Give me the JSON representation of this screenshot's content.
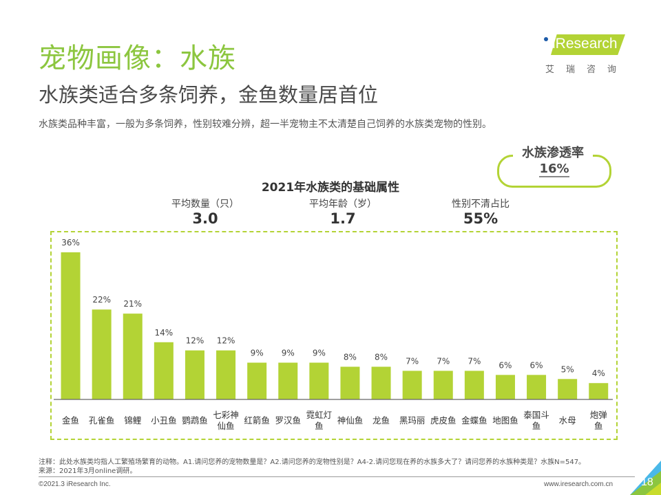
{
  "header": {
    "title": "宠物画像：水族",
    "subtitle": "水族类适合多条饲养，金鱼数量居首位",
    "description": "水族类品种丰富，一般为多条饲养，性别较难分辨，超一半宠物主不太清楚自己饲养的水族类宠物的性别。"
  },
  "logo": {
    "brand": "iResearch",
    "cn": "艾瑞咨询"
  },
  "penetration": {
    "label": "水族渗透率",
    "value": "16%"
  },
  "stats": [
    {
      "label": "平均数量（只）",
      "value": "3.0"
    },
    {
      "label": "平均年龄（岁）",
      "value": "1.7"
    },
    {
      "label": "性别不清占比",
      "value": "55%"
    }
  ],
  "chart_data": {
    "type": "bar",
    "title": "2021年水族类的基础属性",
    "xlabel": "",
    "ylabel": "",
    "ylim": [
      0,
      40
    ],
    "grid": false,
    "categories": [
      "金鱼",
      "孔雀鱼",
      "锦鲤",
      "小丑鱼",
      "鹦鹉鱼",
      "七彩神仙鱼",
      "红箭鱼",
      "罗汉鱼",
      "霓虹灯鱼",
      "神仙鱼",
      "龙鱼",
      "黑玛丽",
      "虎皮鱼",
      "金蝶鱼",
      "地图鱼",
      "泰国斗鱼",
      "水母",
      "炮弹鱼"
    ],
    "category_lines": [
      [
        "金鱼"
      ],
      [
        "孔雀鱼"
      ],
      [
        "锦鲤"
      ],
      [
        "小丑鱼"
      ],
      [
        "鹦鹉鱼"
      ],
      [
        "七彩神",
        "仙鱼"
      ],
      [
        "红箭鱼"
      ],
      [
        "罗汉鱼"
      ],
      [
        "霓虹灯",
        "鱼"
      ],
      [
        "神仙鱼"
      ],
      [
        "龙鱼"
      ],
      [
        "黑玛丽"
      ],
      [
        "虎皮鱼"
      ],
      [
        "金蝶鱼"
      ],
      [
        "地图鱼"
      ],
      [
        "泰国斗",
        "鱼"
      ],
      [
        "水母"
      ],
      [
        "炮弹",
        "鱼"
      ]
    ],
    "values": [
      36,
      22,
      21,
      14,
      12,
      12,
      9,
      9,
      9,
      8,
      8,
      7,
      7,
      7,
      6,
      6,
      5,
      4
    ],
    "value_labels": [
      "36%",
      "22%",
      "21%",
      "14%",
      "12%",
      "12%",
      "9%",
      "9%",
      "9%",
      "8%",
      "8%",
      "7%",
      "7%",
      "7%",
      "6%",
      "6%",
      "5%",
      "4%"
    ],
    "bar_color": "#b3d335"
  },
  "footer": {
    "note": "注释：此处水族类均指人工繁殖场繁育的动物。A1.请问您养的宠物数量是？A2.请问您养的宠物性别是？A4-2.请问您现在养的水族多大了？请问您养的水族种类是？水族N=547。",
    "source": "来源：2021年3月online调研。",
    "copyright": "©2021.3 iResearch Inc.",
    "website": "www.iresearch.com.cn",
    "page": "18"
  }
}
